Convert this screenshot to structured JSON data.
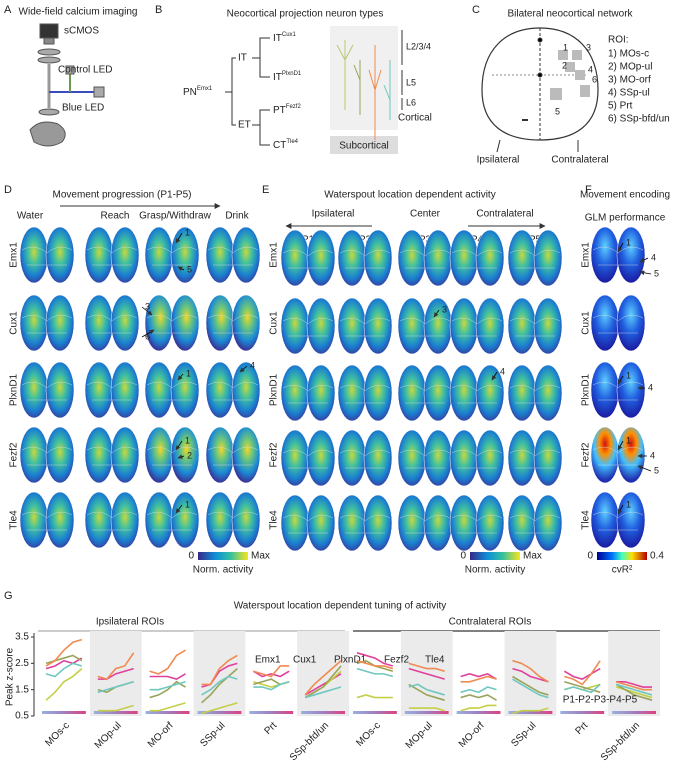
{
  "panels": {
    "a": {
      "label": "A",
      "title": "Wide-field calcium imaging",
      "parts": [
        "sCMOS",
        "Control LED",
        "Blue LED"
      ]
    },
    "b": {
      "label": "B",
      "title": "Neocortical projection neuron types",
      "root": {
        "text": "PN",
        "sup": "Emx1"
      },
      "branches": [
        "IT",
        "ET"
      ],
      "types": [
        {
          "text": "IT",
          "sup": "Cux1"
        },
        {
          "text": "IT",
          "sup": "PlxnD1"
        },
        {
          "text": "PT",
          "sup": "Fezf2"
        },
        {
          "text": "CT",
          "sup": "Tle4"
        }
      ],
      "layers": [
        "L2/3/4",
        "L5",
        "L6"
      ],
      "targets": [
        "Cortical",
        "Subcortical"
      ]
    },
    "c": {
      "label": "C",
      "title": "Bilateral neocortical network",
      "roi_title": "ROI:",
      "rois": [
        "1) MOs-c",
        "2) MOp-ul",
        "3) MO-orf",
        "4) SSp-ul",
        "5) Prt",
        "6) SSp-bfd/un"
      ],
      "map_numbers": [
        "1",
        "2",
        "3",
        "4",
        "5",
        "6"
      ],
      "sides": [
        "Ipsilateral",
        "Contralateral"
      ]
    },
    "d": {
      "label": "D",
      "title": "Movement progression (P1-P5)",
      "stages": [
        "Water",
        "Reach",
        "Grasp/Withdraw",
        "Drink"
      ],
      "rows": [
        "Emx1",
        "Cux1",
        "PlxnD1",
        "Fezf2",
        "Tle4"
      ],
      "annotations": [
        "1",
        "5",
        "3",
        "6",
        "1",
        "4",
        "1",
        "2",
        "1"
      ],
      "colorbar": {
        "min": 0,
        "max": "Max",
        "label": "Norm. activity"
      }
    },
    "e": {
      "label": "E",
      "title": "Waterspout location dependent activity",
      "directions": [
        "Ipsilateral",
        "Center",
        "Contralateral"
      ],
      "positions": [
        "P1",
        "P2",
        "P3",
        "P4",
        "P5"
      ],
      "rows": [
        "Emx1",
        "Cux1",
        "PlxnD1",
        "Fezf2",
        "Tle4"
      ],
      "annotations": [
        "3",
        "4"
      ],
      "colorbar": {
        "min": 0,
        "max": "Max",
        "label": "Norm. activity"
      }
    },
    "f": {
      "label": "F",
      "title": "Movement encoding",
      "subtitle": "GLM performance",
      "rows": [
        "Emx1",
        "Cux1",
        "PlxnD1",
        "Fezf2",
        "Tle4"
      ],
      "annotations": [
        "1",
        "4",
        "5",
        "1",
        "4",
        "1",
        "4",
        "5",
        "1"
      ],
      "colorbar": {
        "min": 0,
        "max": 0.4,
        "label": "cvR²"
      }
    },
    "g": {
      "label": "G"
    }
  },
  "chart_data": {
    "type": "line",
    "title": "Waterspout location dependent tuning of activity",
    "group_labels": [
      "Ipsilateral ROIs",
      "Contralateral ROIs"
    ],
    "ylabel": "Peak z-score",
    "ylim": [
      0.5,
      3.5
    ],
    "yticks": [
      0.5,
      1.5,
      2.5,
      3.5
    ],
    "position_legend": "P1-P2-P3-P4-P5",
    "categories": [
      "MOs-c",
      "MOp-ul",
      "MO-orf",
      "SSp-ul",
      "Prt",
      "SSp-bfd/un",
      "MOs-c",
      "MOp-ul",
      "MO-orf",
      "SSp-ul",
      "Prt",
      "SSp-bfd/un"
    ],
    "series": [
      {
        "name": "Emx1",
        "color": "#e0409a",
        "values": [
          [
            2.3,
            2.4,
            2.6,
            2.5,
            2.7
          ],
          [
            1.9,
            1.9,
            2.1,
            2.2,
            2.3
          ],
          [
            2.0,
            2.0,
            2.0,
            1.9,
            2.1
          ],
          [
            1.6,
            1.7,
            2.2,
            2.4,
            2.5
          ],
          [
            2.2,
            2.0,
            2.1,
            2.0,
            2.2
          ],
          [
            1.3,
            1.5,
            1.7,
            1.9,
            2.1
          ],
          [
            2.9,
            2.8,
            2.7,
            2.5,
            2.4
          ],
          [
            2.3,
            2.2,
            2.1,
            2.0,
            1.9
          ],
          [
            2.0,
            2.1,
            2.0,
            2.1,
            1.9
          ],
          [
            2.3,
            2.2,
            2.0,
            1.9,
            1.8
          ],
          [
            2.2,
            2.0,
            1.9,
            2.1,
            2.3
          ],
          [
            1.8,
            1.8,
            1.7,
            1.6,
            1.6
          ]
        ]
      },
      {
        "name": "Cux1",
        "color": "#c5cf45",
        "values": [
          [
            1.1,
            1.4,
            1.8,
            2.0,
            2.3
          ],
          [
            0.7,
            0.7,
            0.7,
            0.8,
            0.9
          ],
          [
            0.7,
            0.7,
            0.8,
            0.9,
            1.0
          ],
          [
            0.6,
            0.7,
            0.8,
            0.9,
            1.0
          ],
          [
            1.8,
            1.7,
            1.6,
            1.7,
            1.8
          ],
          [
            1.2,
            1.4,
            1.6,
            1.9,
            2.2
          ],
          [
            1.2,
            1.3,
            1.2,
            1.2,
            1.2
          ],
          [
            0.8,
            0.8,
            0.8,
            0.8,
            0.7
          ],
          [
            0.7,
            0.8,
            0.8,
            0.9,
            0.9
          ],
          [
            0.6,
            0.7,
            0.7,
            0.7,
            0.8
          ],
          [
            1.5,
            1.6,
            1.5,
            1.6,
            1.7
          ],
          [
            1.6,
            1.5,
            1.4,
            1.3,
            1.2
          ]
        ]
      },
      {
        "name": "PlxnD1",
        "color": "#9aa35a",
        "values": [
          [
            2.5,
            2.6,
            2.7,
            2.8,
            2.6
          ],
          [
            1.5,
            1.4,
            1.6,
            1.7,
            1.8
          ],
          [
            1.2,
            1.3,
            1.5,
            1.8,
            1.6
          ],
          [
            1.0,
            1.3,
            1.7,
            2.0,
            2.3
          ],
          [
            1.7,
            1.8,
            1.9,
            1.7,
            1.8
          ],
          [
            1.2,
            1.4,
            1.6,
            2.0,
            2.4
          ],
          [
            2.5,
            2.6,
            2.4,
            2.3,
            2.2
          ],
          [
            1.7,
            1.5,
            1.3,
            1.2,
            1.1
          ],
          [
            1.2,
            1.3,
            1.2,
            1.3,
            1.1
          ],
          [
            2.0,
            1.8,
            1.6,
            1.4,
            1.3
          ],
          [
            1.8,
            1.7,
            1.6,
            1.5,
            1.4
          ],
          [
            1.7,
            1.5,
            1.3,
            1.2,
            1.1
          ]
        ]
      },
      {
        "name": "Fezf2",
        "color": "#f08a50",
        "values": [
          [
            2.4,
            2.6,
            3.0,
            3.3,
            3.4
          ],
          [
            2.0,
            1.9,
            2.3,
            2.4,
            2.9
          ],
          [
            2.2,
            2.1,
            2.3,
            2.8,
            3.0
          ],
          [
            1.7,
            1.7,
            2.3,
            2.6,
            2.8
          ],
          [
            2.2,
            2.1,
            2.0,
            2.4,
            2.4
          ],
          [
            1.3,
            1.7,
            2.0,
            2.3,
            2.6
          ],
          [
            2.6,
            2.5,
            2.4,
            2.4,
            2.3
          ],
          [
            2.5,
            2.4,
            2.3,
            2.3,
            2.2
          ],
          [
            1.8,
            1.8,
            1.9,
            2.0,
            1.9
          ],
          [
            2.6,
            2.5,
            2.3,
            2.0,
            1.8
          ],
          [
            2.0,
            1.9,
            1.7,
            2.1,
            2.6
          ],
          [
            1.8,
            1.7,
            1.6,
            1.5,
            1.5
          ]
        ]
      },
      {
        "name": "Tle4",
        "color": "#6ec8c0",
        "values": [
          [
            2.1,
            2.0,
            2.3,
            2.5,
            2.4
          ],
          [
            1.4,
            1.5,
            1.6,
            1.7,
            1.8
          ],
          [
            1.5,
            1.5,
            1.6,
            1.7,
            1.8
          ],
          [
            1.3,
            1.5,
            1.8,
            2.0,
            1.9
          ],
          [
            1.6,
            1.6,
            1.5,
            1.7,
            1.8
          ],
          [
            1.2,
            1.3,
            1.4,
            1.5,
            1.6
          ],
          [
            2.3,
            2.2,
            2.1,
            2.1,
            2.0
          ],
          [
            1.6,
            1.7,
            1.5,
            1.4,
            1.3
          ],
          [
            1.4,
            1.5,
            1.4,
            1.6,
            1.5
          ],
          [
            1.9,
            1.7,
            1.5,
            1.3,
            1.2
          ],
          [
            1.5,
            1.6,
            1.5,
            1.4,
            1.7
          ],
          [
            1.7,
            1.6,
            1.5,
            1.4,
            1.3
          ]
        ]
      }
    ]
  }
}
